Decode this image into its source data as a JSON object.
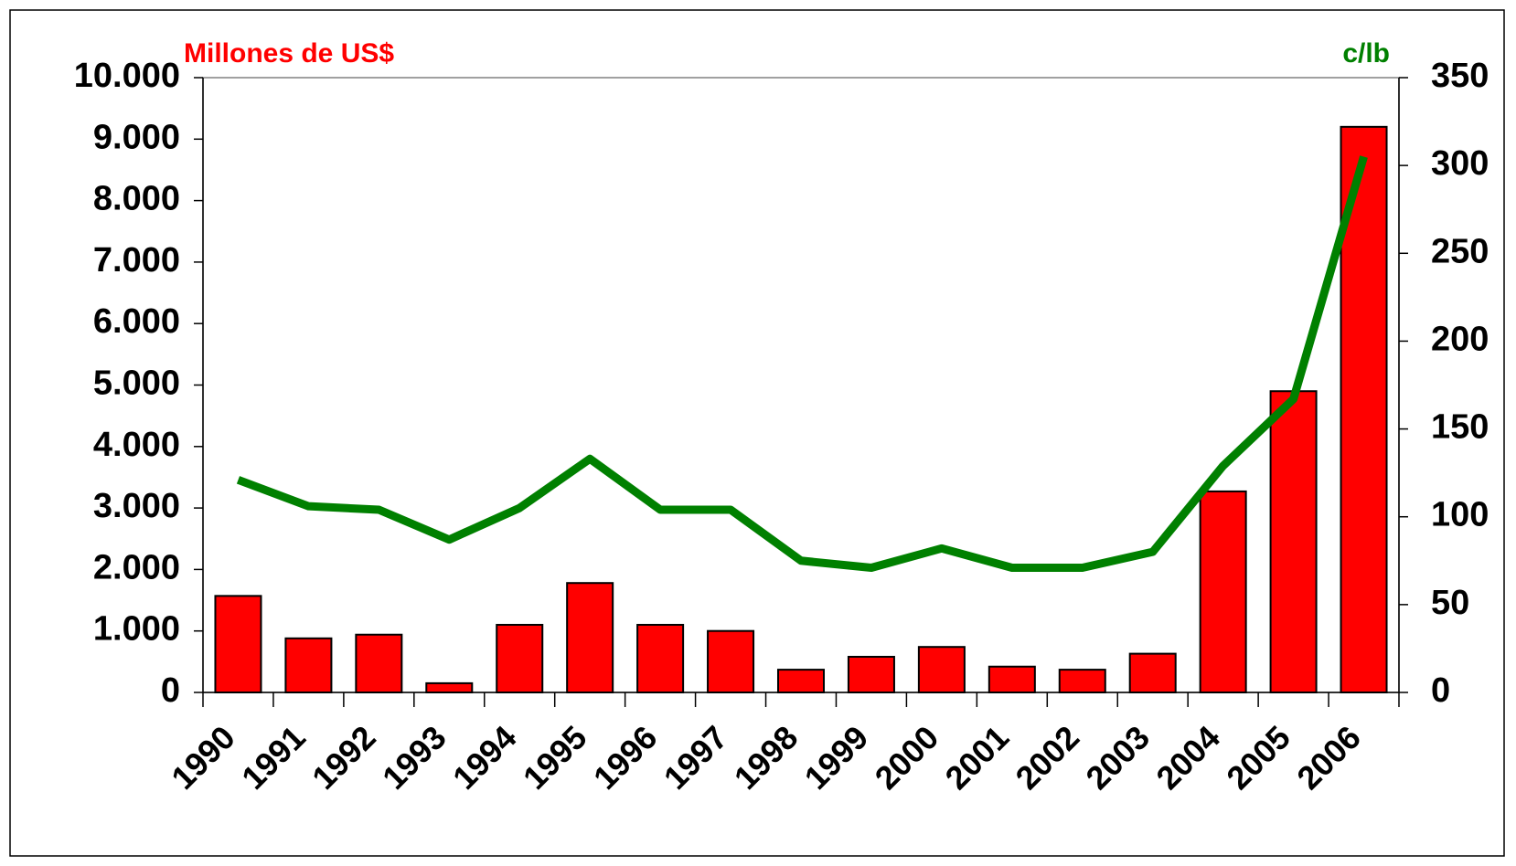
{
  "chart_data": {
    "type": "bar-line",
    "y_title": "Millones de US$",
    "y2_title": "c/lb",
    "categories": [
      "1990",
      "1991",
      "1992",
      "1993",
      "1994",
      "1995",
      "1996",
      "1997",
      "1998",
      "1999",
      "2000",
      "2001",
      "2002",
      "2003",
      "2004",
      "2005",
      "2006"
    ],
    "series": [
      {
        "type": "bar",
        "color": "#ff0000",
        "values": [
          1570,
          880,
          940,
          150,
          1100,
          1780,
          1100,
          1000,
          370,
          580,
          740,
          420,
          370,
          630,
          3270,
          4900,
          9200
        ]
      },
      {
        "type": "line",
        "axis": "y2",
        "color": "#008000",
        "values": [
          121,
          106,
          104,
          87,
          105,
          133,
          104,
          104,
          75,
          71,
          82,
          71,
          71,
          80,
          129,
          167,
          305
        ]
      }
    ],
    "ylim": [
      0,
      10000
    ],
    "yticks": [
      0,
      {
        "value": 1000,
        "label": "1.000"
      },
      {
        "value": 2000,
        "label": "2.000"
      },
      {
        "value": 3000,
        "label": "3.000"
      },
      {
        "value": 4000,
        "label": "4.000"
      },
      {
        "value": 5000,
        "label": "5.000"
      },
      {
        "value": 6000,
        "label": "6.000"
      },
      {
        "value": 7000,
        "label": "7.000"
      },
      {
        "value": 8000,
        "label": "8.000"
      },
      {
        "value": 9000,
        "label": "9.000"
      },
      {
        "value": 10000,
        "label": "10.000"
      }
    ],
    "y2lim": [
      0,
      350
    ],
    "y2ticks": [
      0,
      50,
      100,
      150,
      200,
      250,
      300,
      350
    ]
  }
}
